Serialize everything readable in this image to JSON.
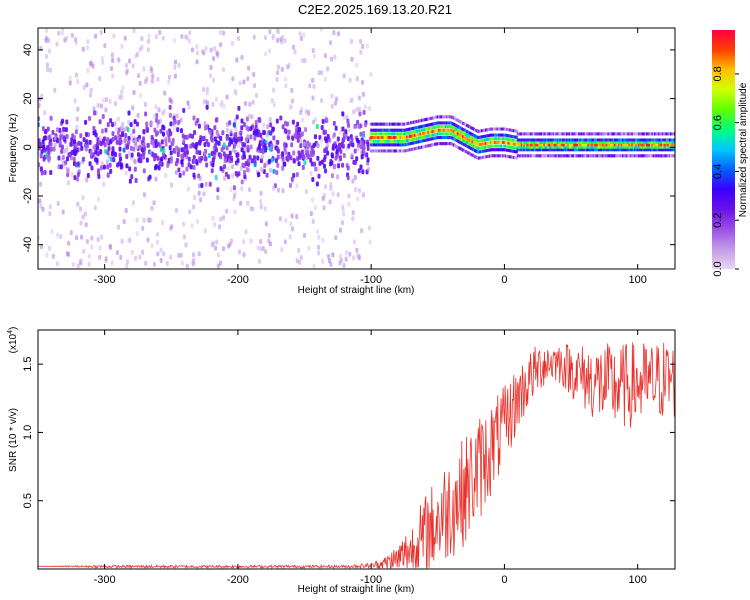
{
  "chart_data": [
    {
      "type": "heatmap",
      "title": "C2E2.2025.169.13.20.R21",
      "xlabel": "Height of straight line (km)",
      "ylabel": "Frequency (Hz)",
      "xlim": [
        -350,
        128
      ],
      "ylim": [
        -50,
        49
      ],
      "x_ticks": [
        -300,
        -200,
        -100,
        0,
        100
      ],
      "y_ticks": [
        -40,
        -20,
        0,
        20,
        40
      ],
      "colorbar": {
        "label": "Normalized spectral amplitude",
        "range": [
          0.0,
          0.98
        ],
        "ticks": [
          0.0,
          0.2,
          0.4,
          0.6,
          0.8
        ],
        "colormap": [
          "#e8d8f4",
          "#c49ae8",
          "#9a50e6",
          "#6a10e8",
          "#3a00ff",
          "#0060ff",
          "#00c8ff",
          "#00ff80",
          "#60ff00",
          "#d0ff00",
          "#ffc000",
          "#ff4000",
          "#ff0040"
        ]
      },
      "regions": [
        {
          "x": [
            -350,
            -100
          ],
          "feature": "broadband noise",
          "center_hz": 0,
          "spread_hz": 49,
          "peak_amplitude": 0.35
        },
        {
          "x": [
            -100,
            128
          ],
          "feature": "narrow tone",
          "center_hz": [
            [
              -100,
              4
            ],
            [
              -75,
              4
            ],
            [
              -50,
              7
            ],
            [
              -40,
              7
            ],
            [
              -30,
              4
            ],
            [
              -20,
              1
            ],
            [
              -10,
              2
            ],
            [
              0,
              2
            ],
            [
              10,
              1
            ],
            [
              128,
              1
            ]
          ],
          "peak_amplitude": 0.95
        }
      ]
    },
    {
      "type": "line",
      "xlabel": "Height of straight line (km)",
      "ylabel": "SNR (10 * v/v)",
      "y_multiplier": "(x10",
      "y_multiplier_exp": "4",
      "y_multiplier_close": ")",
      "xlim": [
        -350,
        128
      ],
      "ylim": [
        0,
        1.75
      ],
      "x_ticks": [
        -300,
        -200,
        -100,
        0,
        100
      ],
      "y_ticks": [
        0.5,
        1.0,
        1.5
      ],
      "y_tick_labels": [
        "0.5",
        "1.0",
        "1.5"
      ],
      "series": [
        {
          "color": "#e8302a",
          "x": [
            -350,
            -300,
            -200,
            -120,
            -100,
            -90,
            -80,
            -70,
            -60,
            -50,
            -40,
            -30,
            -20,
            -10,
            0,
            10,
            20,
            30,
            40,
            50,
            60,
            70,
            80,
            90,
            100,
            110,
            120,
            128
          ],
          "y": [
            0.02,
            0.02,
            0.02,
            0.02,
            0.03,
            0.05,
            0.1,
            0.18,
            0.3,
            0.42,
            0.55,
            0.65,
            0.8,
            0.95,
            1.1,
            1.3,
            1.45,
            1.55,
            1.55,
            1.5,
            1.45,
            1.42,
            1.4,
            1.4,
            1.42,
            1.42,
            1.45,
            1.45
          ],
          "noise_amplitude": [
            0.0,
            0.01,
            0.01,
            0.01,
            0.02,
            0.05,
            0.12,
            0.2,
            0.3,
            0.35,
            0.4,
            0.4,
            0.4,
            0.35,
            0.3,
            0.25,
            0.2,
            0.18,
            0.15,
            0.2,
            0.25,
            0.3,
            0.32,
            0.32,
            0.32,
            0.3,
            0.3,
            0.3
          ]
        }
      ]
    }
  ]
}
